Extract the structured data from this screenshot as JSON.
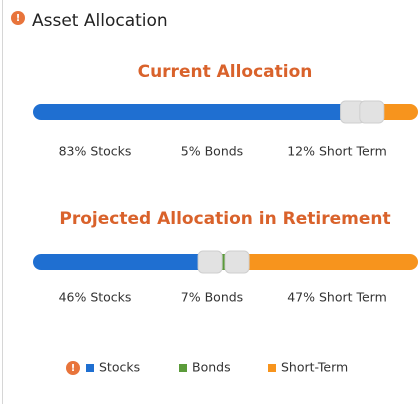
{
  "header": {
    "title": "Asset Allocation"
  },
  "chart_data": [
    {
      "type": "stacked-bar",
      "title": "Current Allocation",
      "values": [
        83,
        5,
        12
      ],
      "value_labels": [
        "83% Stocks",
        "5% Bonds",
        "12% Short Term"
      ],
      "colors": [
        "#1f6fd1",
        "#5b9b3a",
        "#f7941d"
      ]
    },
    {
      "type": "stacked-bar",
      "title": "Projected Allocation in Retirement",
      "values": [
        46,
        7,
        47
      ],
      "value_labels": [
        "46% Stocks",
        "7% Bonds",
        "47% Short Term"
      ],
      "colors": [
        "#1f6fd1",
        "#5b9b3a",
        "#f7941d"
      ]
    }
  ],
  "legend": {
    "items": [
      {
        "name": "Stocks",
        "color": "#1f6fd1"
      },
      {
        "name": "Bonds",
        "color": "#5b9b3a"
      },
      {
        "name": "Short-Term",
        "color": "#f7941d"
      }
    ]
  }
}
